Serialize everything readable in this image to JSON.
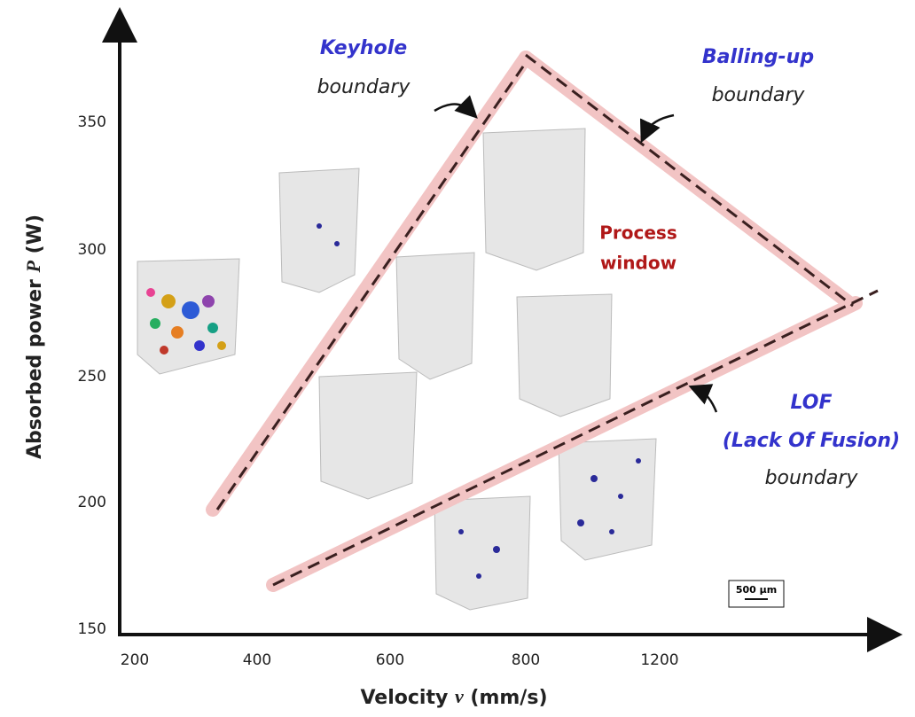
{
  "y_axis": {
    "title": "Absorbed power ",
    "variable": "P",
    "unit": " (W)",
    "ticks": [
      350,
      300,
      250,
      200,
      150
    ]
  },
  "x_axis": {
    "title": "Velocity ",
    "variable": "v",
    "unit": " (mm/s)",
    "ticks": [
      200,
      400,
      600,
      800,
      1200
    ]
  },
  "annotations": {
    "keyhole": {
      "name": "Keyhole",
      "label": "boundary"
    },
    "balling_up": {
      "name": "Balling-up",
      "label": "boundary"
    },
    "process_window": {
      "line1": "Process",
      "line2": "window"
    },
    "lof": {
      "name": "LOF",
      "full": "(Lack Of Fusion)",
      "label": "boundary"
    },
    "scale_bar": "500 μm"
  }
}
